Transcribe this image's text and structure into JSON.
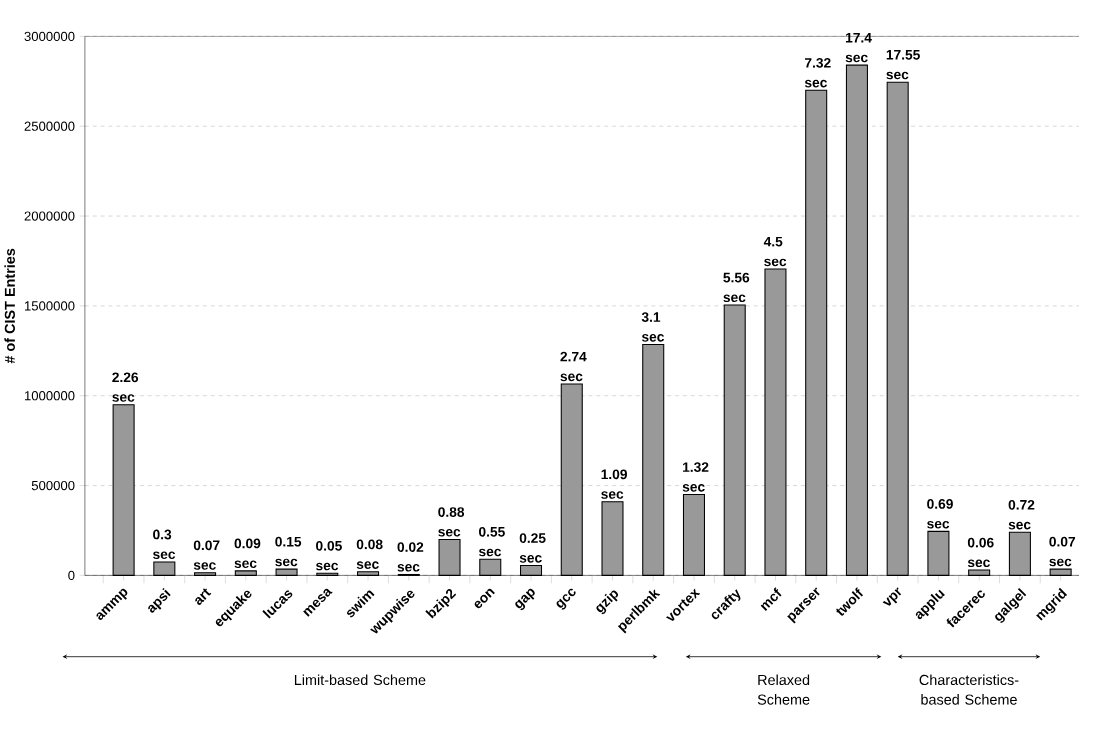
{
  "chart_data": {
    "type": "bar",
    "ylabel": "# of CIST Entries",
    "categories": [
      "ammp",
      "apsi",
      "art",
      "equake",
      "lucas",
      "mesa",
      "swim",
      "wupwise",
      "bzip2",
      "eon",
      "gap",
      "gcc",
      "gzip",
      "perlbmk",
      "vortex",
      "crafty",
      "mcf",
      "parser",
      "twolf",
      "vpr",
      "applu",
      "facerec",
      "galgel",
      "mgrid"
    ],
    "values": [
      950000,
      75000,
      15000,
      25000,
      35000,
      12000,
      20000,
      5000,
      200000,
      90000,
      55000,
      1065000,
      410000,
      1285000,
      450000,
      1505000,
      1705000,
      2700000,
      2840000,
      2745000,
      245000,
      30000,
      240000,
      35000
    ],
    "color": "#999999",
    "ylim": [
      0,
      3000000
    ],
    "yticks": [
      0,
      500000,
      1000000,
      1500000,
      2000000,
      2500000,
      3000000
    ],
    "grid": "y",
    "annotations": [
      {
        "text": "2.26 sec",
        "x": "ammp",
        "y": 950000
      },
      {
        "text": "0.3 sec",
        "x": "apsi",
        "y": 75000
      },
      {
        "text": "0.07 sec",
        "x": "art",
        "y": 15000
      },
      {
        "text": "0.09 sec",
        "x": "equake",
        "y": 25000
      },
      {
        "text": "0.15 sec",
        "x": "lucas",
        "y": 35000
      },
      {
        "text": "0.05 sec",
        "x": "mesa",
        "y": 12000
      },
      {
        "text": "0.08 sec",
        "x": "swim",
        "y": 20000
      },
      {
        "text": "0.02 sec",
        "x": "wupwise",
        "y": 5000
      },
      {
        "text": "0.88 sec",
        "x": "bzip2",
        "y": 200000
      },
      {
        "text": "0.55 sec",
        "x": "eon",
        "y": 90000
      },
      {
        "text": "0.25 sec",
        "x": "gap",
        "y": 55000
      },
      {
        "text": "2.74 sec",
        "x": "gcc",
        "y": 1065000
      },
      {
        "text": "1.09 sec",
        "x": "gzip",
        "y": 410000
      },
      {
        "text": "3.1 sec",
        "x": "perlbmk",
        "y": 1285000
      },
      {
        "text": "1.32 sec",
        "x": "vortex",
        "y": 450000
      },
      {
        "text": "5.56 sec",
        "x": "crafty",
        "y": 1505000
      },
      {
        "text": "4.5 sec",
        "x": "mcf",
        "y": 1705000
      },
      {
        "text": "7.32 sec",
        "x": "parser",
        "y": 2700000
      },
      {
        "text": "17.4 sec",
        "x": "twolf",
        "y": 2840000
      },
      {
        "text": "17.55 sec",
        "x": "vpr",
        "y": 2745000
      },
      {
        "text": "0.69 sec",
        "x": "applu",
        "y": 245000
      },
      {
        "text": "0.06 sec",
        "x": "facerec",
        "y": 30000
      },
      {
        "text": "0.72 sec",
        "x": "galgel",
        "y": 240000
      },
      {
        "text": "0.07 sec",
        "x": "mgrid",
        "y": 35000
      },
      "Limit-based Scheme",
      "Relaxed Scheme",
      "Characteristics-based Scheme"
    ]
  }
}
